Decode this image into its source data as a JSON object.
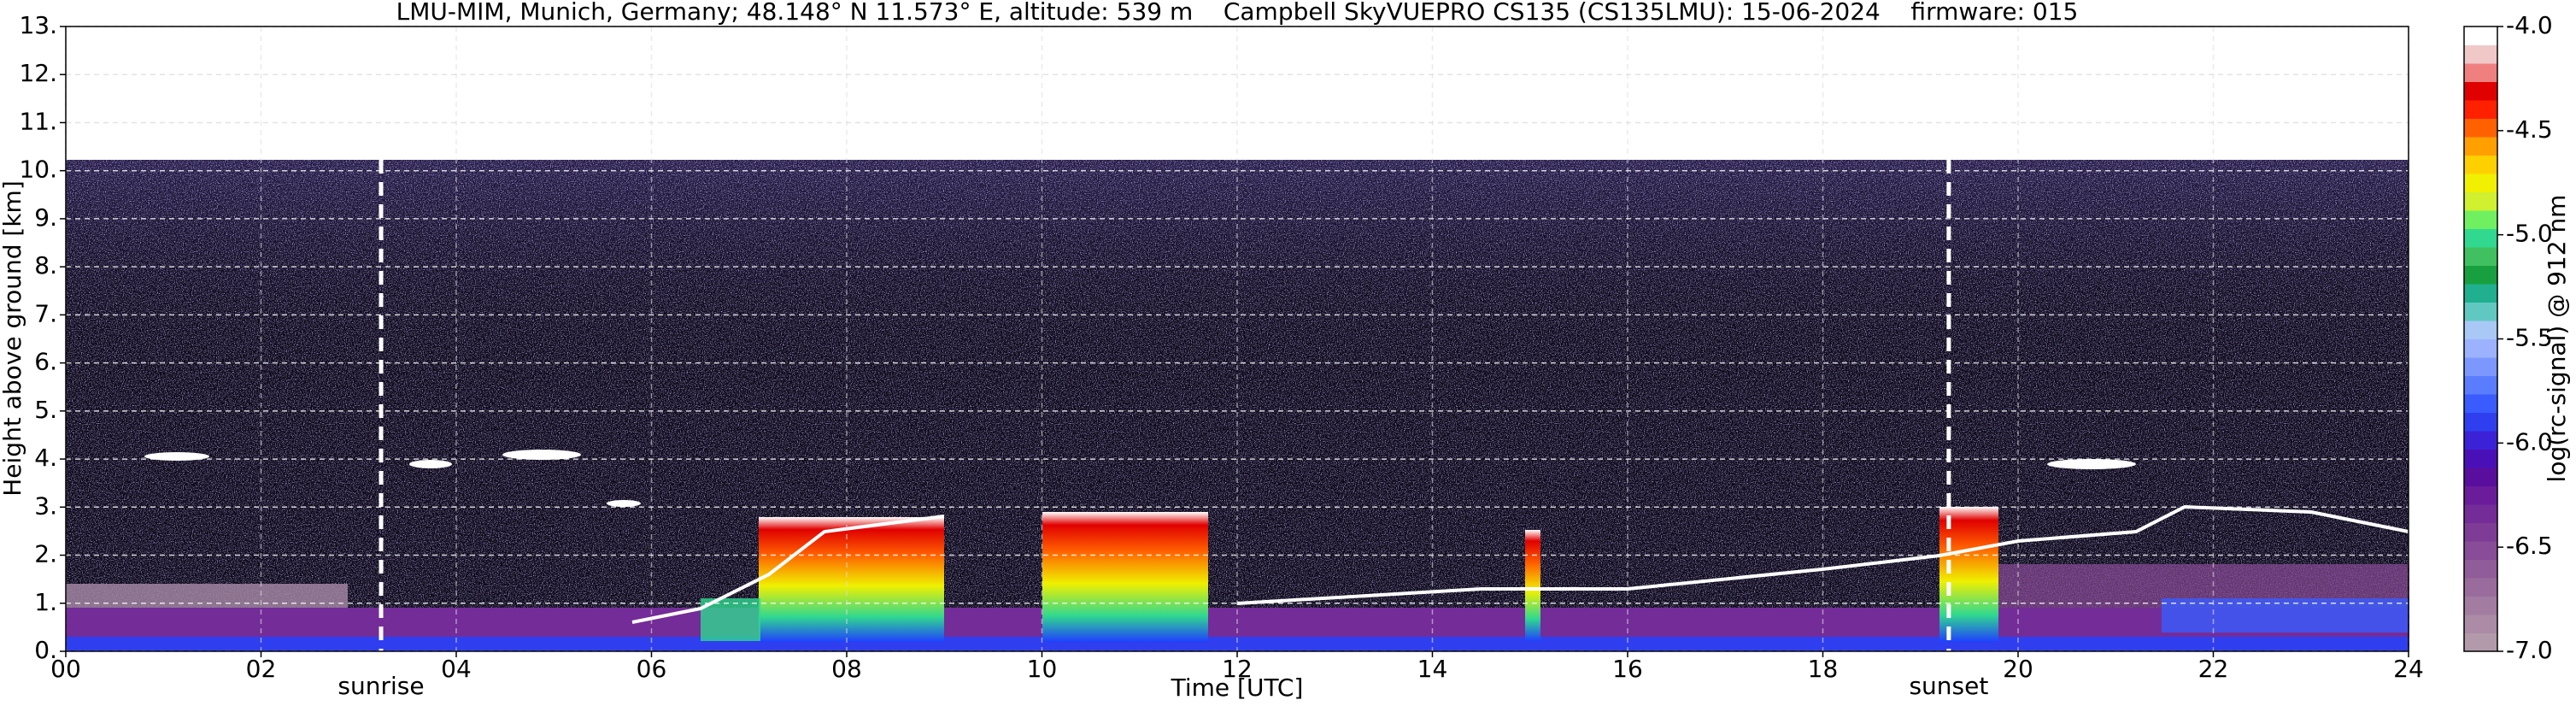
{
  "chart_data": {
    "type": "heatmap",
    "title": "LMU-MIM, Munich, Germany; 48.148° N 11.573° E, altitude: 539 m    Campbell SkyVUEPRO CS135 (CS135LMU): 15-06-2024    firmware: 015",
    "xlabel": "Time [UTC]",
    "ylabel": "Height above ground [km]",
    "xlim": [
      0,
      24
    ],
    "xticks": [
      {
        "value": 0,
        "label": "00"
      },
      {
        "value": 2,
        "label": "02"
      },
      {
        "value": 4,
        "label": "04"
      },
      {
        "value": 6,
        "label": "06"
      },
      {
        "value": 8,
        "label": "08"
      },
      10,
      12,
      14,
      16,
      18,
      20,
      22,
      24
    ],
    "ylim": [
      0,
      13
    ],
    "yticks": [
      {
        "value": 0,
        "label": "0."
      },
      {
        "value": 1,
        "label": "1."
      },
      {
        "value": 2,
        "label": "2."
      },
      {
        "value": 3,
        "label": "3."
      },
      {
        "value": 4,
        "label": "4."
      },
      {
        "value": 5,
        "label": "5."
      },
      {
        "value": 6,
        "label": "6."
      },
      {
        "value": 7,
        "label": "7."
      },
      {
        "value": 8,
        "label": "8."
      },
      {
        "value": 9,
        "label": "9."
      },
      {
        "value": 10,
        "label": "10."
      },
      {
        "value": 11,
        "label": "11."
      },
      {
        "value": 12,
        "label": "12."
      },
      {
        "value": 13,
        "label": "13."
      }
    ],
    "grid": true,
    "annotations": [
      {
        "text": "sunrise",
        "x": 3.23
      },
      {
        "text": "sunset",
        "x": 19.29
      }
    ],
    "colorbar": {
      "label": "log(rc-signal) @ 912 nm",
      "lim": [
        -7.0,
        -4.0
      ],
      "ticks": [
        {
          "value": -7.0,
          "label": "-7.0"
        },
        -6.5,
        {
          "value": -6.0,
          "label": "-6.0"
        },
        -5.5,
        {
          "value": -5.0,
          "label": "-5.0"
        },
        -4.5,
        {
          "value": -4.0,
          "label": "-4.0"
        }
      ],
      "colors": [
        "#b39aab",
        "#ab8ba6",
        "#a27ca1",
        "#9a6c9d",
        "#915c9a",
        "#884c98",
        "#7e3c97",
        "#742c98",
        "#6a1c9a",
        "#5a0e9e",
        "#4a10b8",
        "#3c22d6",
        "#2f3ff0",
        "#3a5cff",
        "#5a7cff",
        "#7c98ff",
        "#9cb2ff",
        "#a9c8f5",
        "#60c8c0",
        "#20b090",
        "#18a040",
        "#40c060",
        "#30d890",
        "#70f060",
        "#d0f030",
        "#f0f000",
        "#ffd000",
        "#ffa000",
        "#ff6000",
        "#ff2000",
        "#e00000",
        "#f08080",
        "#f0c8c8",
        "#ffffff"
      ]
    }
  }
}
